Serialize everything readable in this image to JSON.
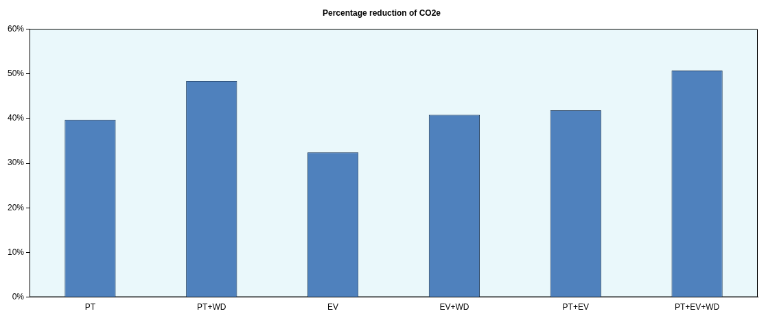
{
  "chart_data": {
    "type": "bar",
    "title": "Percentage reduction of CO2e",
    "categories": [
      "PT",
      "PT+WD",
      "EV",
      "EV+WD",
      "PT+EV",
      "PT+EV+WD"
    ],
    "values": [
      39.7,
      48.4,
      32.4,
      40.8,
      41.8,
      50.7
    ],
    "color": "#4f81bd",
    "ylim": [
      0,
      60
    ],
    "yticks": [
      {
        "value": 0,
        "label": "0%"
      },
      {
        "value": 10,
        "label": "10%"
      },
      {
        "value": 20,
        "label": "20%"
      },
      {
        "value": 30,
        "label": "30%"
      },
      {
        "value": 40,
        "label": "40%"
      },
      {
        "value": 50,
        "label": "50%"
      },
      {
        "value": 60,
        "label": "60%"
      }
    ],
    "grid": false,
    "legend": false
  }
}
